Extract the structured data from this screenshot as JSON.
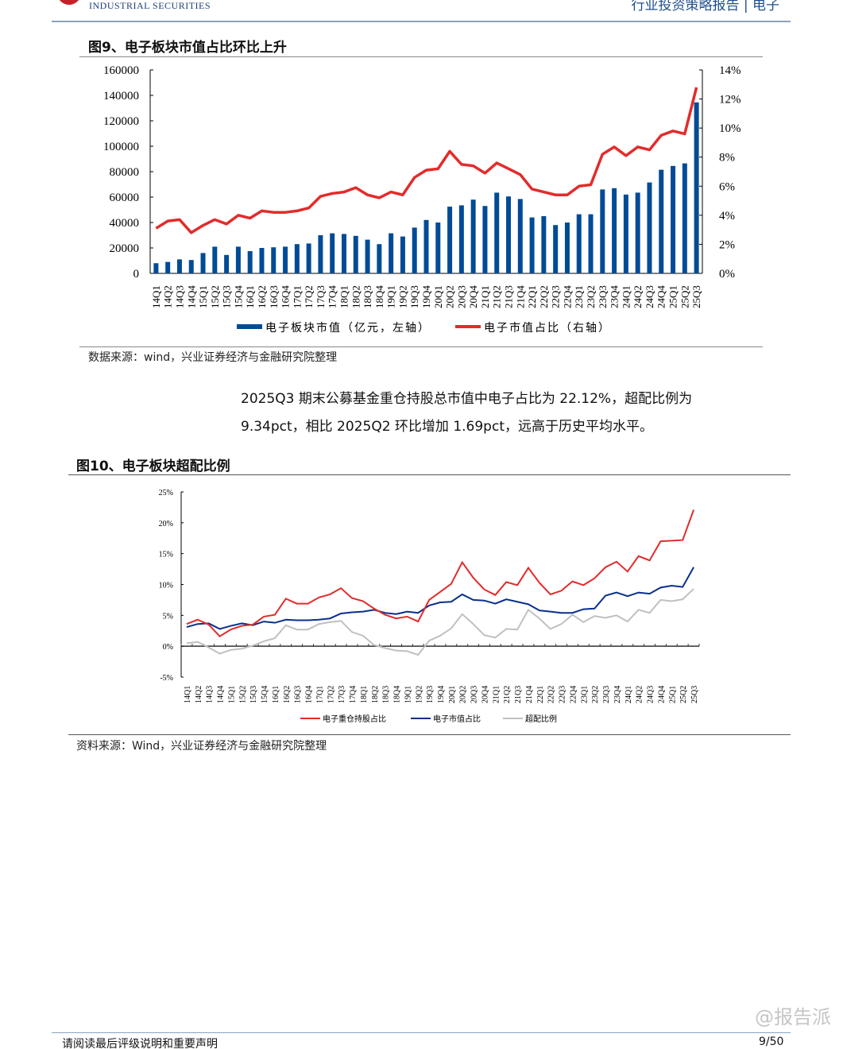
{
  "header": {
    "brand": "INDUSTRIAL SECURITIES",
    "report_type": "行业投资策略报告 | 电子"
  },
  "figure9": {
    "title": "图9、电子板块市值占比环比上升",
    "source": "数据来源：wind，兴业证券经济与金融研究院整理"
  },
  "paragraph": {
    "line1": "2025Q3 期末公募基金重仓持股总市值中电子占比为 22.12%，超配比例为",
    "line2": "9.34pct，相比 2025Q2 环比增加 1.69pct，远高于历史平均水平。"
  },
  "figure10": {
    "title": "图10、电子板块超配比例",
    "source": "资料来源：Wind，兴业证券经济与金融研究院整理"
  },
  "footer": {
    "disclaimer": "请阅读最后评级说明和重要声明",
    "page": "9/50",
    "watermark": "@报告派"
  },
  "chart_data": [
    {
      "type": "bar+line",
      "categories": [
        "14Q1",
        "14Q2",
        "14Q3",
        "14Q4",
        "15Q1",
        "15Q2",
        "15Q3",
        "15Q4",
        "16Q1",
        "16Q2",
        "16Q3",
        "16Q4",
        "17Q1",
        "17Q2",
        "17Q3",
        "17Q4",
        "18Q1",
        "18Q2",
        "18Q3",
        "18Q4",
        "19Q1",
        "19Q2",
        "19Q3",
        "19Q4",
        "20Q1",
        "20Q2",
        "20Q3",
        "20Q4",
        "21Q1",
        "21Q2",
        "21Q3",
        "21Q4",
        "22Q1",
        "22Q2",
        "22Q3",
        "22Q4",
        "23Q1",
        "23Q2",
        "23Q3",
        "23Q4",
        "24Q1",
        "24Q2",
        "24Q3",
        "24Q4",
        "25Q1",
        "25Q2",
        "25Q3"
      ],
      "series": [
        {
          "name": "电子板块市值（亿元，左轴）",
          "type": "bar",
          "axis": "left",
          "color": "#004b96",
          "values": [
            8000,
            9000,
            11000,
            10500,
            16000,
            21000,
            14500,
            21000,
            17500,
            20000,
            20500,
            21000,
            23000,
            23500,
            30000,
            31500,
            31000,
            29500,
            26500,
            23000,
            31500,
            29000,
            36000,
            42000,
            40000,
            52500,
            53500,
            58000,
            53000,
            63500,
            60500,
            58500,
            44000,
            45000,
            38000,
            40000,
            46500,
            46500,
            66000,
            67000,
            62000,
            63500,
            71500,
            81500,
            84500,
            86500,
            134500
          ]
        },
        {
          "name": "电子市值占比（右轴）",
          "type": "line",
          "axis": "right",
          "color": "#e32b2b",
          "values": [
            3.1,
            3.6,
            3.7,
            2.8,
            3.3,
            3.7,
            3.4,
            4.0,
            3.8,
            4.3,
            4.2,
            4.2,
            4.3,
            4.5,
            5.3,
            5.5,
            5.6,
            5.9,
            5.4,
            5.2,
            5.6,
            5.4,
            6.6,
            7.1,
            7.2,
            8.4,
            7.5,
            7.4,
            6.9,
            7.6,
            7.2,
            6.8,
            5.8,
            5.6,
            5.4,
            5.4,
            6.0,
            6.1,
            8.2,
            8.7,
            8.1,
            8.7,
            8.5,
            9.5,
            9.8,
            9.6,
            12.8
          ]
        }
      ],
      "left_ticks": [
        "0",
        "20000",
        "40000",
        "60000",
        "80000",
        "100000",
        "120000",
        "140000",
        "160000"
      ],
      "right_ticks": [
        "0%",
        "2%",
        "4%",
        "6%",
        "8%",
        "10%",
        "12%",
        "14%"
      ],
      "ylim_left": [
        0,
        160000
      ],
      "ylim_right": [
        0,
        14
      ],
      "legend": "bottom",
      "grid": false
    },
    {
      "type": "line",
      "categories": [
        "14Q1",
        "14Q2",
        "14Q3",
        "14Q4",
        "15Q1",
        "15Q2",
        "15Q3",
        "15Q4",
        "16Q1",
        "16Q2",
        "16Q3",
        "16Q4",
        "17Q1",
        "17Q2",
        "17Q3",
        "17Q4",
        "18Q1",
        "18Q2",
        "18Q3",
        "18Q4",
        "19Q1",
        "19Q2",
        "19Q3",
        "19Q4",
        "20Q1",
        "20Q2",
        "20Q3",
        "20Q4",
        "21Q1",
        "21Q2",
        "21Q3",
        "21Q4",
        "22Q1",
        "22Q2",
        "22Q3",
        "22Q4",
        "23Q1",
        "23Q2",
        "23Q3",
        "23Q4",
        "24Q1",
        "24Q2",
        "24Q3",
        "24Q4",
        "25Q1",
        "25Q2",
        "25Q3"
      ],
      "series": [
        {
          "name": "电子重仓持股占比",
          "color": "#e32b2b",
          "values": [
            3.6,
            4.3,
            3.5,
            1.6,
            2.7,
            3.3,
            3.5,
            4.8,
            5.1,
            7.7,
            6.9,
            6.9,
            7.9,
            8.4,
            9.4,
            7.8,
            7.3,
            6.1,
            5.1,
            4.5,
            4.8,
            4.0,
            7.5,
            8.8,
            10.1,
            13.6,
            11.1,
            9.2,
            8.3,
            10.4,
            9.9,
            12.7,
            10.3,
            8.4,
            9.0,
            10.5,
            9.9,
            11.0,
            12.8,
            13.7,
            12.1,
            14.6,
            13.9,
            17.0,
            17.1,
            17.2,
            22.1
          ]
        },
        {
          "name": "电子市值占比",
          "color": "#0a2f8c",
          "values": [
            3.1,
            3.6,
            3.7,
            2.8,
            3.3,
            3.7,
            3.4,
            4.0,
            3.8,
            4.3,
            4.2,
            4.2,
            4.3,
            4.5,
            5.3,
            5.5,
            5.6,
            5.9,
            5.4,
            5.2,
            5.6,
            5.4,
            6.6,
            7.1,
            7.2,
            8.4,
            7.5,
            7.4,
            6.9,
            7.6,
            7.2,
            6.8,
            5.8,
            5.6,
            5.4,
            5.4,
            6.0,
            6.1,
            8.2,
            8.7,
            8.1,
            8.7,
            8.5,
            9.5,
            9.8,
            9.6,
            12.8
          ]
        },
        {
          "name": "超配比例",
          "color": "#c0c0c0",
          "values": [
            0.5,
            0.7,
            -0.2,
            -1.2,
            -0.6,
            -0.4,
            0.1,
            0.8,
            1.3,
            3.4,
            2.7,
            2.7,
            3.6,
            3.9,
            4.1,
            2.3,
            1.7,
            0.2,
            -0.3,
            -0.7,
            -0.8,
            -1.4,
            0.9,
            1.7,
            2.9,
            5.2,
            3.6,
            1.8,
            1.4,
            2.8,
            2.7,
            5.9,
            4.5,
            2.8,
            3.6,
            5.1,
            3.9,
            4.9,
            4.6,
            5.0,
            4.0,
            5.9,
            5.4,
            7.5,
            7.3,
            7.6,
            9.3
          ]
        }
      ],
      "y_ticks": [
        "-5%",
        "0%",
        "5%",
        "10%",
        "15%",
        "20%",
        "25%"
      ],
      "ylim": [
        -5,
        25
      ],
      "legend": "bottom",
      "grid": false
    }
  ]
}
